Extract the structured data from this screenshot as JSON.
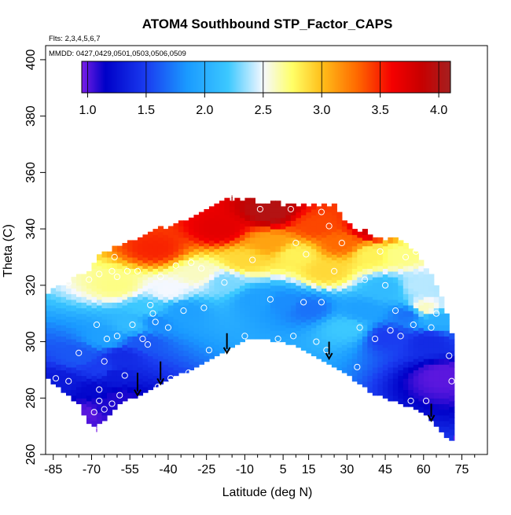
{
  "chart_data": {
    "type": "heatmap",
    "title": "ATOM4 Southbound STP_Factor_CAPS",
    "flights_label": "Flts: 2,3,4,5,6,7",
    "dates_label": "MMDD: 0427,0429,0501,0503,0506,0509",
    "xlabel": "Latitude (deg N)",
    "ylabel": "Theta (C)",
    "xlim": [
      -88,
      85
    ],
    "ylim": [
      260,
      405
    ],
    "xticks": [
      -85,
      -70,
      -55,
      -40,
      -25,
      -10,
      5,
      15,
      30,
      45,
      60,
      75
    ],
    "xticks_minor": [
      -80,
      -75,
      -65,
      -60,
      -50,
      -45,
      -35,
      -30,
      -20,
      -15,
      -5,
      0,
      10,
      20,
      25,
      35,
      40,
      50,
      55,
      65,
      70,
      80
    ],
    "yticks": [
      260,
      280,
      300,
      320,
      340,
      360,
      380,
      400
    ],
    "colorbar": {
      "range": [
        0.95,
        4.1
      ],
      "ticks": [
        1.0,
        1.5,
        2.0,
        2.5,
        3.0,
        3.5,
        4.0
      ],
      "tick_labels": [
        "1.0",
        "1.5",
        "2.0",
        "2.5",
        "3.0",
        "3.5",
        "4.0"
      ],
      "stops": [
        {
          "v": 0.95,
          "c": "#7a1fe6"
        },
        {
          "v": 1.15,
          "c": "#0000c8"
        },
        {
          "v": 1.5,
          "c": "#1a3cf0"
        },
        {
          "v": 1.85,
          "c": "#1a9aff"
        },
        {
          "v": 2.2,
          "c": "#3cc8ff"
        },
        {
          "v": 2.5,
          "c": "#f5f8ff"
        },
        {
          "v": 2.75,
          "c": "#ffff66"
        },
        {
          "v": 3.0,
          "c": "#ffbf1a"
        },
        {
          "v": 3.3,
          "c": "#ff6a00"
        },
        {
          "v": 3.6,
          "c": "#f50000"
        },
        {
          "v": 3.85,
          "c": "#c80000"
        },
        {
          "v": 4.1,
          "c": "#a52020"
        }
      ]
    },
    "upper_boundary": [
      {
        "lat": -70,
        "theta": 325
      },
      {
        "lat": -66,
        "theta": 331
      },
      {
        "lat": -60,
        "theta": 333
      },
      {
        "lat": -50,
        "theta": 337
      },
      {
        "lat": -40,
        "theta": 340
      },
      {
        "lat": -30,
        "theta": 343
      },
      {
        "lat": -20,
        "theta": 348
      },
      {
        "lat": -15,
        "theta": 350
      },
      {
        "lat": -5,
        "theta": 349
      },
      {
        "lat": 5,
        "theta": 348
      },
      {
        "lat": 15,
        "theta": 348
      },
      {
        "lat": 20,
        "theta": 348
      },
      {
        "lat": 26,
        "theta": 347
      },
      {
        "lat": 30,
        "theta": 341
      },
      {
        "lat": 40,
        "theta": 337
      },
      {
        "lat": 50,
        "theta": 335
      },
      {
        "lat": 55,
        "theta": 333
      },
      {
        "lat": 60,
        "theta": 327
      },
      {
        "lat": 66,
        "theta": 318
      },
      {
        "lat": 70,
        "theta": 305
      },
      {
        "lat": 72,
        "theta": 300
      }
    ],
    "lower_boundary": [
      {
        "lat": -88,
        "theta": 288
      },
      {
        "lat": -80,
        "theta": 282
      },
      {
        "lat": -75,
        "theta": 278
      },
      {
        "lat": -70,
        "theta": 270
      },
      {
        "lat": -65,
        "theta": 272
      },
      {
        "lat": -60,
        "theta": 278
      },
      {
        "lat": -50,
        "theta": 282
      },
      {
        "lat": -40,
        "theta": 287
      },
      {
        "lat": -30,
        "theta": 291
      },
      {
        "lat": -20,
        "theta": 296
      },
      {
        "lat": -10,
        "theta": 301
      },
      {
        "lat": 0,
        "theta": 301
      },
      {
        "lat": 10,
        "theta": 299
      },
      {
        "lat": 20,
        "theta": 294
      },
      {
        "lat": 30,
        "theta": 289
      },
      {
        "lat": 40,
        "theta": 282
      },
      {
        "lat": 50,
        "theta": 279
      },
      {
        "lat": 60,
        "theta": 275
      },
      {
        "lat": 65,
        "theta": 270
      },
      {
        "lat": 70,
        "theta": 265
      },
      {
        "lat": 72,
        "theta": 265
      }
    ],
    "observations": [
      {
        "lat": -83,
        "theta": 286,
        "v": 1.3
      },
      {
        "lat": -75,
        "theta": 295,
        "v": 1.6
      },
      {
        "lat": -70,
        "theta": 275,
        "v": 1.0
      },
      {
        "lat": -68,
        "theta": 283,
        "v": 1.2
      },
      {
        "lat": -66,
        "theta": 276,
        "v": 1.1
      },
      {
        "lat": -66,
        "theta": 290,
        "v": 1.5
      },
      {
        "lat": -64,
        "theta": 301,
        "v": 1.9
      },
      {
        "lat": -62,
        "theta": 288,
        "v": 1.3
      },
      {
        "lat": -60,
        "theta": 280,
        "v": 1.1
      },
      {
        "lat": -58,
        "theta": 295,
        "v": 1.4
      },
      {
        "lat": -54,
        "theta": 306,
        "v": 2.1
      },
      {
        "lat": -50,
        "theta": 300,
        "v": 1.6
      },
      {
        "lat": -48,
        "theta": 312,
        "v": 2.2
      },
      {
        "lat": -45,
        "theta": 307,
        "v": 1.8
      },
      {
        "lat": -40,
        "theta": 318,
        "v": 2.5
      },
      {
        "lat": -34,
        "theta": 311,
        "v": 1.9
      },
      {
        "lat": -28,
        "theta": 324,
        "v": 2.6
      },
      {
        "lat": -18,
        "theta": 321,
        "v": 2.3
      },
      {
        "lat": -10,
        "theta": 329,
        "v": 2.9
      },
      {
        "lat": -5,
        "theta": 315,
        "v": 1.9
      },
      {
        "lat": 0,
        "theta": 335,
        "v": 3.1
      },
      {
        "lat": 5,
        "theta": 314,
        "v": 1.8
      },
      {
        "lat": 10,
        "theta": 331,
        "v": 2.8
      },
      {
        "lat": 15,
        "theta": 312,
        "v": 1.7
      },
      {
        "lat": 18,
        "theta": 341,
        "v": 3.4
      },
      {
        "lat": 22,
        "theta": 325,
        "v": 2.9
      },
      {
        "lat": 28,
        "theta": 335,
        "v": 3.3
      },
      {
        "lat": 30,
        "theta": 305,
        "v": 2.2
      },
      {
        "lat": 36,
        "theta": 311,
        "v": 1.9
      },
      {
        "lat": 40,
        "theta": 331,
        "v": 2.8
      },
      {
        "lat": 45,
        "theta": 319,
        "v": 2.1
      },
      {
        "lat": 46,
        "theta": 302,
        "v": 1.5
      },
      {
        "lat": 50,
        "theta": 331,
        "v": 2.7
      },
      {
        "lat": 54,
        "theta": 310,
        "v": 1.7
      },
      {
        "lat": 58,
        "theta": 320,
        "v": 2.4
      },
      {
        "lat": 62,
        "theta": 300,
        "v": 1.4
      },
      {
        "lat": 66,
        "theta": 308,
        "v": 2.0
      },
      {
        "lat": 68,
        "theta": 288,
        "v": 1.0
      },
      {
        "lat": -20,
        "theta": 340,
        "v": 3.7
      },
      {
        "lat": 0,
        "theta": 346,
        "v": 4.0
      },
      {
        "lat": -45,
        "theta": 333,
        "v": 3.5
      },
      {
        "lat": 40,
        "theta": 340,
        "v": 3.8
      },
      {
        "lat": -60,
        "theta": 320,
        "v": 2.7
      },
      {
        "lat": 60,
        "theta": 312,
        "v": 2.6
      }
    ],
    "sample_points": [
      {
        "lat": -84,
        "theta": 287
      },
      {
        "lat": -79,
        "theta": 286
      },
      {
        "lat": -75,
        "theta": 296
      },
      {
        "lat": -79,
        "theta": 321
      },
      {
        "lat": -71,
        "theta": 322
      },
      {
        "lat": -69,
        "theta": 275
      },
      {
        "lat": -67,
        "theta": 279
      },
      {
        "lat": -67,
        "theta": 283
      },
      {
        "lat": -68,
        "theta": 306
      },
      {
        "lat": -67,
        "theta": 324
      },
      {
        "lat": -65,
        "theta": 293
      },
      {
        "lat": -65,
        "theta": 276
      },
      {
        "lat": -64,
        "theta": 301
      },
      {
        "lat": -62,
        "theta": 278
      },
      {
        "lat": -62,
        "theta": 325
      },
      {
        "lat": -61,
        "theta": 330
      },
      {
        "lat": -60,
        "theta": 323
      },
      {
        "lat": -60,
        "theta": 302
      },
      {
        "lat": -59,
        "theta": 281
      },
      {
        "lat": -57,
        "theta": 288
      },
      {
        "lat": -56,
        "theta": 325
      },
      {
        "lat": -54,
        "theta": 306
      },
      {
        "lat": -52,
        "theta": 325
      },
      {
        "lat": -50,
        "theta": 301
      },
      {
        "lat": -48,
        "theta": 299
      },
      {
        "lat": -47,
        "theta": 313
      },
      {
        "lat": -46,
        "theta": 310
      },
      {
        "lat": -45,
        "theta": 307
      },
      {
        "lat": -44,
        "theta": 284
      },
      {
        "lat": -43,
        "theta": 323
      },
      {
        "lat": -40,
        "theta": 305
      },
      {
        "lat": -39,
        "theta": 287
      },
      {
        "lat": -37,
        "theta": 327
      },
      {
        "lat": -34,
        "theta": 311
      },
      {
        "lat": -32,
        "theta": 289
      },
      {
        "lat": -31,
        "theta": 328
      },
      {
        "lat": -27,
        "theta": 326
      },
      {
        "lat": -26,
        "theta": 312
      },
      {
        "lat": -24,
        "theta": 297
      },
      {
        "lat": -18,
        "theta": 321
      },
      {
        "lat": -10,
        "theta": 302
      },
      {
        "lat": -7,
        "theta": 329
      },
      {
        "lat": -4,
        "theta": 347
      },
      {
        "lat": 0,
        "theta": 315
      },
      {
        "lat": 3,
        "theta": 301
      },
      {
        "lat": 8,
        "theta": 347
      },
      {
        "lat": 9,
        "theta": 302
      },
      {
        "lat": 10,
        "theta": 335
      },
      {
        "lat": 13,
        "theta": 314
      },
      {
        "lat": 14,
        "theta": 331
      },
      {
        "lat": 18,
        "theta": 300
      },
      {
        "lat": 20,
        "theta": 346
      },
      {
        "lat": 20,
        "theta": 314
      },
      {
        "lat": 22,
        "theta": 297
      },
      {
        "lat": 23,
        "theta": 341
      },
      {
        "lat": 25,
        "theta": 325
      },
      {
        "lat": 28,
        "theta": 335
      },
      {
        "lat": 31,
        "theta": 346
      },
      {
        "lat": 34,
        "theta": 291
      },
      {
        "lat": 35,
        "theta": 305
      },
      {
        "lat": 37,
        "theta": 322
      },
      {
        "lat": 41,
        "theta": 301
      },
      {
        "lat": 43,
        "theta": 332
      },
      {
        "lat": 45,
        "theta": 320
      },
      {
        "lat": 47,
        "theta": 304
      },
      {
        "lat": 49,
        "theta": 311
      },
      {
        "lat": 51,
        "theta": 302
      },
      {
        "lat": 53,
        "theta": 330
      },
      {
        "lat": 55,
        "theta": 279
      },
      {
        "lat": 56,
        "theta": 306
      },
      {
        "lat": 57,
        "theta": 332
      },
      {
        "lat": 61,
        "theta": 279
      },
      {
        "lat": 63,
        "theta": 305
      },
      {
        "lat": 65,
        "theta": 310
      },
      {
        "lat": 70,
        "theta": 295
      },
      {
        "lat": 71,
        "theta": 286
      }
    ],
    "arrows": [
      {
        "lat": -52,
        "theta_from": 289,
        "theta_to": 281
      },
      {
        "lat": -43,
        "theta_from": 293,
        "theta_to": 285
      },
      {
        "lat": -17,
        "theta_from": 303,
        "theta_to": 296
      },
      {
        "lat": 23,
        "theta_from": 300,
        "theta_to": 294
      },
      {
        "lat": 63,
        "theta_from": 278,
        "theta_to": 272
      }
    ],
    "markers": [
      {
        "lat": -15,
        "theta": 350,
        "label": "i"
      },
      {
        "lat": -68,
        "theta": 268,
        "label": "i"
      },
      {
        "lat": 72,
        "theta": 265,
        "label": "i"
      }
    ]
  }
}
